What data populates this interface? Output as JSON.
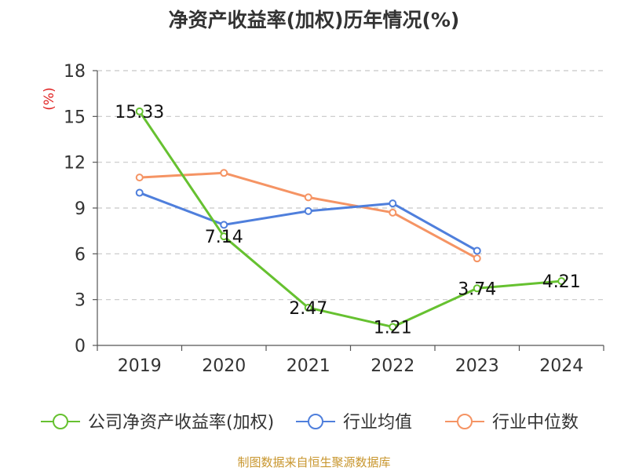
{
  "title": "净资产收益率(加权)历年情况(%)",
  "source": "制图数据来自恒生聚源数据库",
  "colors": {
    "company": "#66c130",
    "industry_avg": "#4f7fdc",
    "industry_median": "#f59464",
    "unit_label": "#e02020",
    "grid": "#c8c8c8",
    "axis": "#555555",
    "source": "#c8962e"
  },
  "chart_data": {
    "type": "line",
    "title": "净资产收益率(加权)历年情况(%)",
    "xlabel": "",
    "ylabel": "(%)",
    "categories": [
      "2019",
      "2020",
      "2021",
      "2022",
      "2023",
      "2024"
    ],
    "ylim": [
      0,
      18
    ],
    "yticks": [
      0,
      3,
      6,
      9,
      12,
      15,
      18
    ],
    "grid": true,
    "legend_position": "bottom",
    "series": [
      {
        "key": "company",
        "name": "公司净资产收益率(加权)",
        "values": [
          15.33,
          7.14,
          2.47,
          1.21,
          3.74,
          4.21
        ],
        "data_labels": [
          "15.33",
          "7.14",
          "2.47",
          "1.21",
          "3.74",
          "4.21"
        ]
      },
      {
        "key": "industry_avg",
        "name": "行业均值",
        "values": [
          10.0,
          7.9,
          8.8,
          9.3,
          6.2,
          null
        ]
      },
      {
        "key": "industry_median",
        "name": "行业中位数",
        "values": [
          11.0,
          11.3,
          9.7,
          8.7,
          5.7,
          null
        ]
      }
    ]
  }
}
